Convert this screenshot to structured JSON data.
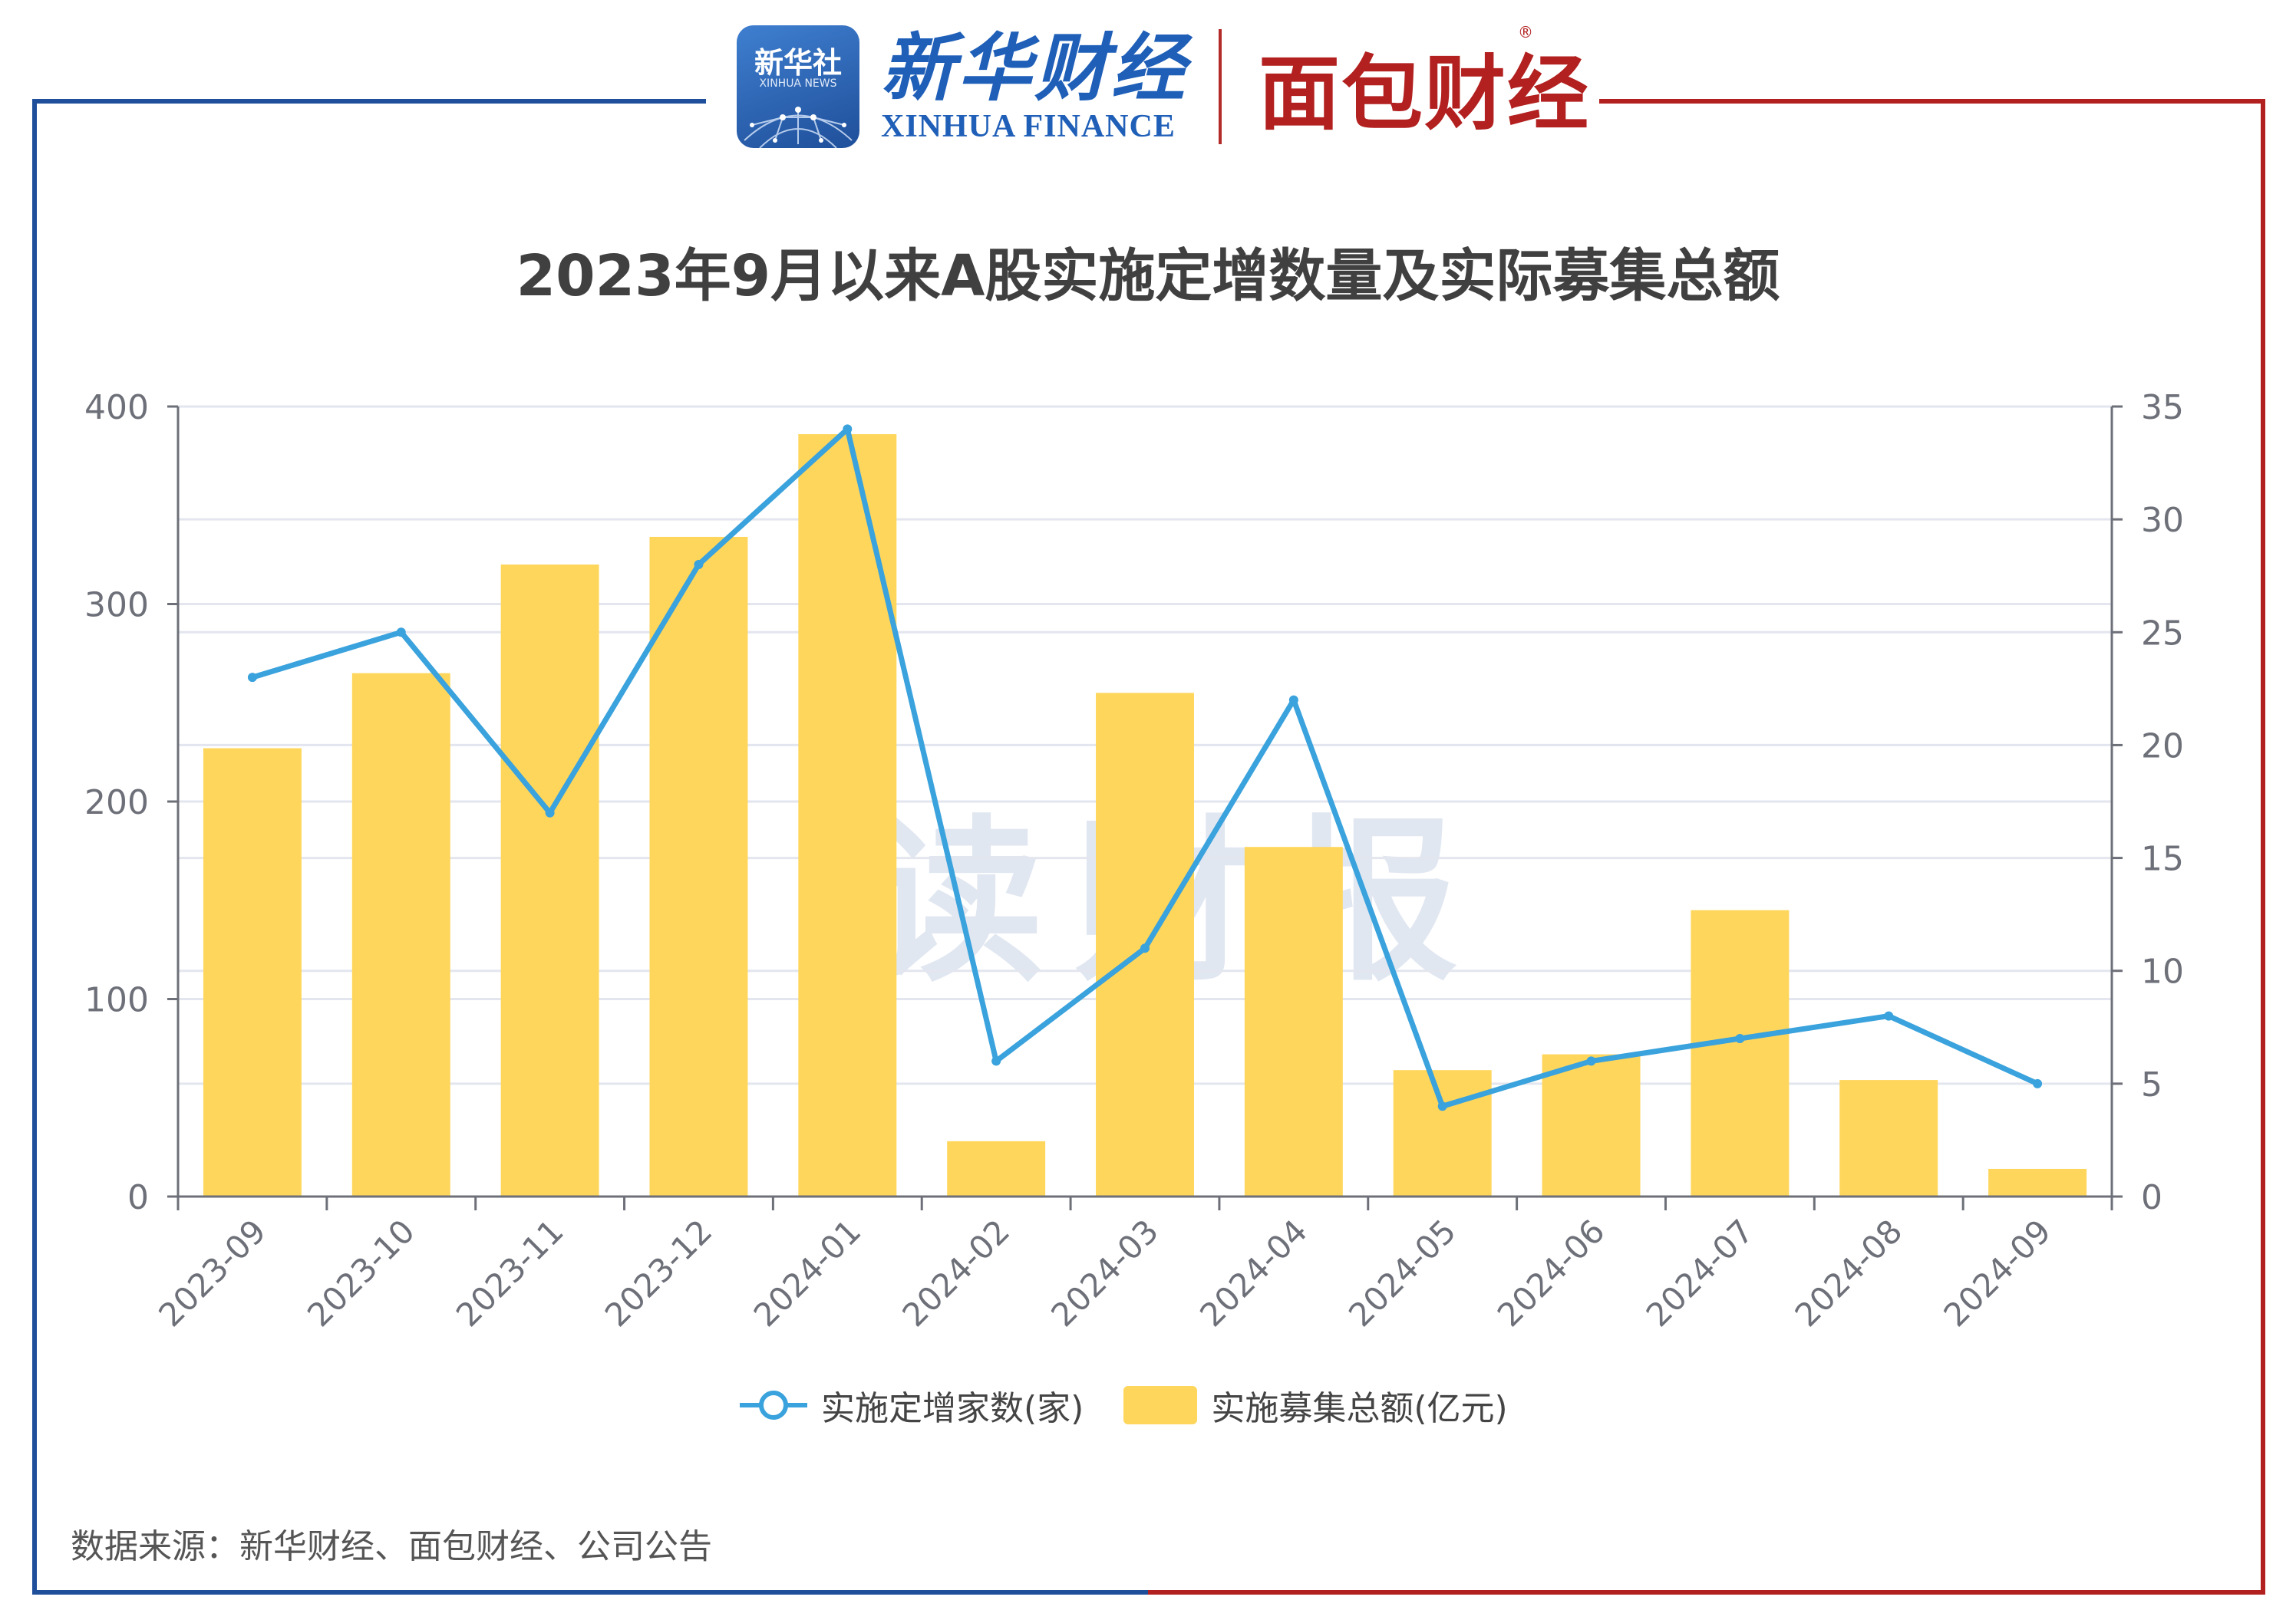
{
  "header": {
    "xinhua_badge_cn": "新华社",
    "xinhua_badge_en": "XINHUA NEWS",
    "xinhua_finance_cn": "新华财经",
    "xinhua_finance_en": "XINHUA FINANCE",
    "mianbao_cn": "面包财经",
    "registered_mark": "®"
  },
  "watermark": "读财报",
  "source_text": "数据来源：新华财经、面包财经、公司公告",
  "colors": {
    "bar": "#ffd65c",
    "line": "#3aa2dc",
    "frame_left": "#1f4f9a",
    "frame_right": "#b2201f",
    "grid": "#e3e6ee",
    "axis": "#6e7079",
    "tick_text": "#6e7079"
  },
  "chart_data": {
    "type": "bar",
    "title": "2023年9月以来A股实施定增数量及实际募集总额",
    "categories": [
      "2023-09",
      "2023-10",
      "2023-11",
      "2023-12",
      "2024-01",
      "2024-02",
      "2024-03",
      "2024-04",
      "2024-05",
      "2024-06",
      "2024-07",
      "2024-08",
      "2024-09"
    ],
    "series": [
      {
        "name": "实施募集总额(亿元)",
        "type": "bar",
        "axis": "left",
        "values": [
          227,
          265,
          320,
          334,
          386,
          28,
          255,
          177,
          64,
          72,
          145,
          59,
          14
        ]
      },
      {
        "name": "实施定增家数(家)",
        "type": "line",
        "axis": "right",
        "values": [
          23,
          25,
          17,
          28,
          34,
          6,
          11,
          22,
          4,
          6,
          7,
          8,
          5
        ]
      }
    ],
    "y_left": {
      "min": 0,
      "max": 400,
      "ticks": [
        0,
        100,
        200,
        300,
        400
      ]
    },
    "y_right": {
      "min": 0,
      "max": 35,
      "ticks": [
        0,
        5,
        10,
        15,
        20,
        25,
        30,
        35
      ]
    },
    "grid": true,
    "legend_position": "bottom-center"
  },
  "legend": [
    {
      "label": "实施定增家数(家)",
      "kind": "line"
    },
    {
      "label": "实施募集总额(亿元)",
      "kind": "bar"
    }
  ]
}
